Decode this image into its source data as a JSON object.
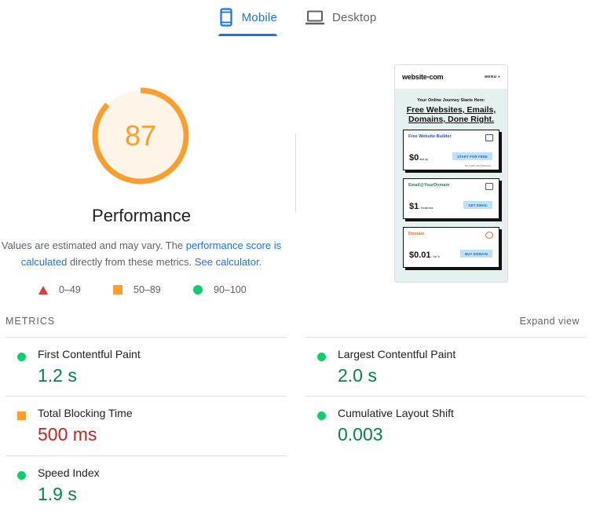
{
  "tabs": [
    {
      "label": "Mobile",
      "icon": "smartphone-icon",
      "active": true
    },
    {
      "label": "Desktop",
      "icon": "laptop-icon",
      "active": false
    }
  ],
  "gauge": {
    "score": "87",
    "score_value": 0.87,
    "title": "Performance",
    "desc_prefix": "Values are estimated and may vary. The ",
    "desc_link1": "performance score is calculated",
    "desc_middle": " directly from these metrics. ",
    "desc_link2": "See calculator",
    "desc_suffix": ".",
    "color": "#fa9e2e",
    "bg_color": "#fef4e7"
  },
  "legend": [
    {
      "shape": "triangle",
      "range": "0–49",
      "color": "#e53935"
    },
    {
      "shape": "square",
      "range": "50–89",
      "color": "#fa9e2e"
    },
    {
      "shape": "circle",
      "range": "90–100",
      "color": "#0cce6b"
    }
  ],
  "screenshot": {
    "logo_text": "website",
    "logo_dot": "•",
    "logo_suffix": "com",
    "menu": "MENU ▾",
    "tagline": "Your Online Journey Starts Here:",
    "headline": "Free Websites, Emails, Domains, Done Right.",
    "cards": [
      {
        "title": "Free Website Builder",
        "title_color": "#2b55a8",
        "price": "$0",
        "price_note": "and up",
        "button": "START FOR FREE",
        "note": "No Credit Card Required"
      },
      {
        "title": "Email@YourDomain",
        "title_color": "#2a7d4f",
        "price": "$1",
        "price_note": "/ Email box",
        "button": "GET EMAIL",
        "note": ""
      },
      {
        "title": "Domain",
        "title_color": "#e06a2b",
        "price": "$0.01",
        "price_note": "/ 1st Yr",
        "button": "BUY DOMAIN",
        "note": ""
      }
    ]
  },
  "metrics": {
    "heading": "METRICS",
    "expand_label": "Expand view",
    "items": [
      {
        "label": "First Contentful Paint",
        "value": "1.2 s",
        "rating": "good"
      },
      {
        "label": "Largest Contentful Paint",
        "value": "2.0 s",
        "rating": "good"
      },
      {
        "label": "Total Blocking Time",
        "value": "500 ms",
        "rating": "average"
      },
      {
        "label": "Cumulative Layout Shift",
        "value": "0.003",
        "rating": "good"
      },
      {
        "label": "Speed Index",
        "value": "1.9 s",
        "rating": "good"
      }
    ]
  },
  "colors": {
    "accent": "#1a73e8",
    "good": "#0cce6b",
    "good_text": "#018642",
    "average": "#fa9e2e",
    "poor": "#e53935",
    "poor_text": "#c7221f"
  }
}
